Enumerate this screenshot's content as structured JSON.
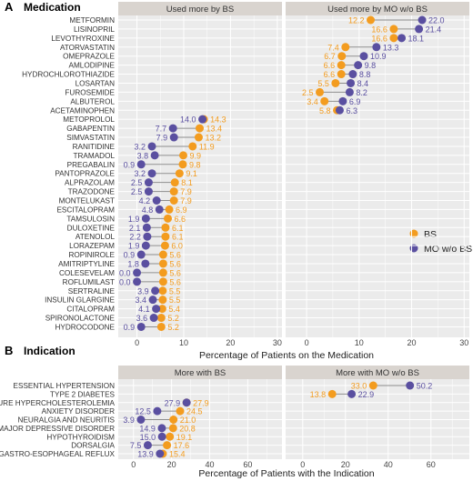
{
  "colors": {
    "bs": "#f39c1f",
    "mo": "#5a4fa0",
    "panel_bg": "#ebebeb",
    "strip_bg": "#d9d4cf",
    "grid": "#ffffff",
    "segment": "#8c8c8c"
  },
  "legend": {
    "items": [
      {
        "label": "BS",
        "color": "#f39c1f"
      },
      {
        "label": "MO w/o BS",
        "color": "#5a4fa0"
      }
    ],
    "placement": "right"
  },
  "panels": [
    {
      "letter": "A",
      "heading": "Medication",
      "strips": [
        "Used more by BS",
        "Used more by MO w/o BS"
      ],
      "xlabel": "Percentage of Patients on the Medication",
      "xticks": [
        "0",
        "10",
        "20",
        "30"
      ]
    },
    {
      "letter": "B",
      "heading": "Indication",
      "strips": [
        "More with BS",
        "More with MO w/o BS"
      ],
      "xlabel": "Percentage of Patients with the Indication",
      "xticks": [
        "0",
        "20",
        "40",
        "60"
      ]
    }
  ],
  "chart_data": [
    {
      "type": "scatter",
      "title": "Medication",
      "xlabel": "Percentage of Patients on the Medication",
      "xlim": [
        -4,
        31
      ],
      "facets": [
        "Used more by BS",
        "Used more by MO w/o BS"
      ],
      "series": [
        {
          "name": "BS",
          "color": "#f39c1f"
        },
        {
          "name": "MO w/o BS",
          "color": "#5a4fa0"
        }
      ],
      "rows": [
        {
          "name": "METFORMIN",
          "facet": 1,
          "bs": 12.2,
          "mo": 22.0
        },
        {
          "name": "LISINOPRIL",
          "facet": 1,
          "bs": 16.6,
          "mo": 21.4
        },
        {
          "name": "LEVOTHYROXINE",
          "facet": 1,
          "bs": 16.6,
          "mo": 18.1
        },
        {
          "name": "ATORVASTATIN",
          "facet": 1,
          "bs": 7.4,
          "mo": 13.3
        },
        {
          "name": "OMEPRAZOLE",
          "facet": 1,
          "bs": 6.7,
          "mo": 10.9
        },
        {
          "name": "AMLODIPINE",
          "facet": 1,
          "bs": 6.6,
          "mo": 9.8
        },
        {
          "name": "HYDROCHLOROTHIAZIDE",
          "facet": 1,
          "bs": 6.6,
          "mo": 8.8
        },
        {
          "name": "LOSARTAN",
          "facet": 1,
          "bs": 5.5,
          "mo": 8.4
        },
        {
          "name": "FUROSEMIDE",
          "facet": 1,
          "bs": 2.5,
          "mo": 8.2
        },
        {
          "name": "ALBUTEROL",
          "facet": 1,
          "bs": 3.4,
          "mo": 6.9
        },
        {
          "name": "ACETAMINOPHEN",
          "facet": 1,
          "bs": 5.8,
          "mo": 6.3
        },
        {
          "name": "METOPROLOL",
          "facet": 0,
          "bs": 14.3,
          "mo": 14.0
        },
        {
          "name": "GABAPENTIN",
          "facet": 0,
          "bs": 13.4,
          "mo": 7.7
        },
        {
          "name": "SIMVASTATIN",
          "facet": 0,
          "bs": 13.2,
          "mo": 7.9
        },
        {
          "name": "RANITIDINE",
          "facet": 0,
          "bs": 11.9,
          "mo": 3.2
        },
        {
          "name": "TRAMADOL",
          "facet": 0,
          "bs": 9.9,
          "mo": 3.8
        },
        {
          "name": "PREGABALIN",
          "facet": 0,
          "bs": 9.8,
          "mo": 0.9
        },
        {
          "name": "PANTOPRAZOLE",
          "facet": 0,
          "bs": 9.1,
          "mo": 3.2
        },
        {
          "name": "ALPRAZOLAM",
          "facet": 0,
          "bs": 8.1,
          "mo": 2.5
        },
        {
          "name": "TRAZODONE",
          "facet": 0,
          "bs": 7.9,
          "mo": 2.5
        },
        {
          "name": "MONTELUKAST",
          "facet": 0,
          "bs": 7.9,
          "mo": 4.2
        },
        {
          "name": "ESCITALOPRAM",
          "facet": 0,
          "bs": 6.9,
          "mo": 4.8
        },
        {
          "name": "TAMSULOSIN",
          "facet": 0,
          "bs": 6.6,
          "mo": 1.9
        },
        {
          "name": "DULOXETINE",
          "facet": 0,
          "bs": 6.1,
          "mo": 2.1
        },
        {
          "name": "ATENOLOL",
          "facet": 0,
          "bs": 6.1,
          "mo": 2.2
        },
        {
          "name": "LORAZEPAM",
          "facet": 0,
          "bs": 6.0,
          "mo": 1.9
        },
        {
          "name": "ROPINIROLE",
          "facet": 0,
          "bs": 5.6,
          "mo": 0.9
        },
        {
          "name": "AMITRIPTYLINE",
          "facet": 0,
          "bs": 5.6,
          "mo": 1.8
        },
        {
          "name": "COLESEVELAM",
          "facet": 0,
          "bs": 5.6,
          "mo": 0.0
        },
        {
          "name": "ROFLUMILAST",
          "facet": 0,
          "bs": 5.6,
          "mo": 0.0
        },
        {
          "name": "SERTRALINE",
          "facet": 0,
          "bs": 5.5,
          "mo": 3.9
        },
        {
          "name": "INSULIN GLARGINE",
          "facet": 0,
          "bs": 5.5,
          "mo": 3.4
        },
        {
          "name": "CITALOPRAM",
          "facet": 0,
          "bs": 5.4,
          "mo": 4.1
        },
        {
          "name": "SPIRONOLACTONE",
          "facet": 0,
          "bs": 5.2,
          "mo": 3.6
        },
        {
          "name": "HYDROCODONE",
          "facet": 0,
          "bs": 5.2,
          "mo": 0.9
        }
      ]
    },
    {
      "type": "scatter",
      "title": "Indication",
      "xlabel": "Percentage of Patients with the Indication",
      "xlim": [
        -8,
        78
      ],
      "facets": [
        "More with BS",
        "More with MO w/o BS"
      ],
      "series": [
        {
          "name": "BS",
          "color": "#f39c1f"
        },
        {
          "name": "MO w/o BS",
          "color": "#5a4fa0"
        }
      ],
      "rows": [
        {
          "name": "ESSENTIAL HYPERTENSION",
          "facet": 1,
          "bs": 33.0,
          "mo": 50.2
        },
        {
          "name": "TYPE 2 DIABETES",
          "facet": 1,
          "bs": 13.8,
          "mo": 22.9
        },
        {
          "name": "PURE HYPERCHOLESTEROLEMIA",
          "facet": 0,
          "bs": 27.9,
          "mo": 27.9
        },
        {
          "name": "ANXIETY DISORDER",
          "facet": 0,
          "bs": 24.5,
          "mo": 12.5
        },
        {
          "name": "NEURALGIA AND NEURITIS",
          "facet": 0,
          "bs": 21.0,
          "mo": 3.9
        },
        {
          "name": "MAJOR DEPRESSIVE DISORDER",
          "facet": 0,
          "bs": 20.8,
          "mo": 14.9
        },
        {
          "name": "HYPOTHYROIDISM",
          "facet": 0,
          "bs": 19.1,
          "mo": 15.0
        },
        {
          "name": "DORSALGIA",
          "facet": 0,
          "bs": 17.6,
          "mo": 7.5
        },
        {
          "name": "GASTRO-ESOPHAGEAL REFLUX",
          "facet": 0,
          "bs": 15.4,
          "mo": 13.9
        }
      ]
    }
  ]
}
